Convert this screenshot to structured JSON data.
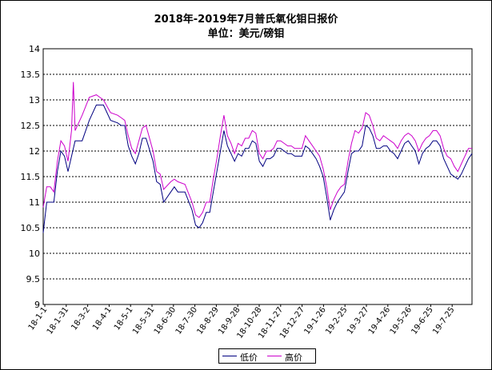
{
  "chart_data": {
    "type": "line",
    "title": "2018年-2019年7月普氏氧化钼日报价",
    "subtitle": "单位：美元/磅钼",
    "ylim": [
      9,
      14
    ],
    "yticks": [
      "14",
      "13.5",
      "13",
      "12.5",
      "12",
      "11.5",
      "11",
      "10.5",
      "10",
      "9.5",
      "9"
    ],
    "grid": true,
    "legend_position": "bottom-center",
    "categories": [
      "18-1-1",
      "18-1-31",
      "18-3-2",
      "18-4-1",
      "18-5-1",
      "18-5-31",
      "18-6-30",
      "18-7-30",
      "18-8-29",
      "18-9-28",
      "18-10-28",
      "18-11-27",
      "18-12-27",
      "19-1-26",
      "19-2-25",
      "19-3-27",
      "19-4-26",
      "19-5-26",
      "19-6-25",
      "19-7-25"
    ],
    "series": [
      {
        "name": "低价",
        "color": "#000080",
        "points": [
          [
            0,
            10.4
          ],
          [
            1,
            11.0
          ],
          [
            3,
            11.0
          ],
          [
            4,
            11.6
          ],
          [
            5,
            12.0
          ],
          [
            6,
            11.9
          ],
          [
            7,
            11.6
          ],
          [
            9,
            12.2
          ],
          [
            11,
            12.2
          ],
          [
            13,
            12.6
          ],
          [
            15,
            12.9
          ],
          [
            17,
            12.9
          ],
          [
            19,
            12.6
          ],
          [
            21,
            12.55
          ],
          [
            22,
            12.5
          ],
          [
            23,
            12.5
          ],
          [
            24,
            12.1
          ],
          [
            25,
            11.9
          ],
          [
            26,
            11.75
          ],
          [
            27,
            11.95
          ],
          [
            28,
            12.25
          ],
          [
            29,
            12.25
          ],
          [
            31,
            11.8
          ],
          [
            32,
            11.4
          ],
          [
            33,
            11.35
          ],
          [
            34,
            11.0
          ],
          [
            36,
            11.2
          ],
          [
            37,
            11.3
          ],
          [
            38,
            11.2
          ],
          [
            40,
            11.2
          ],
          [
            42,
            10.85
          ],
          [
            43,
            10.55
          ],
          [
            44,
            10.5
          ],
          [
            45,
            10.6
          ],
          [
            46,
            10.8
          ],
          [
            47,
            10.8
          ],
          [
            48,
            11.2
          ],
          [
            49,
            11.6
          ],
          [
            50,
            12.0
          ],
          [
            51,
            12.4
          ],
          [
            52,
            12.1
          ],
          [
            53,
            11.95
          ],
          [
            54,
            11.8
          ],
          [
            55,
            11.95
          ],
          [
            56,
            11.9
          ],
          [
            57,
            12.05
          ],
          [
            58,
            12.05
          ],
          [
            59,
            12.2
          ],
          [
            60,
            12.15
          ],
          [
            61,
            11.8
          ],
          [
            62,
            11.7
          ],
          [
            63,
            11.85
          ],
          [
            64,
            11.85
          ],
          [
            65,
            11.9
          ],
          [
            66,
            12.05
          ],
          [
            67,
            12.05
          ],
          [
            68,
            12.0
          ],
          [
            69,
            11.95
          ],
          [
            70,
            11.95
          ],
          [
            71,
            11.9
          ],
          [
            72,
            11.9
          ],
          [
            73,
            11.9
          ],
          [
            74,
            12.1
          ],
          [
            75,
            12.05
          ],
          [
            76,
            11.95
          ],
          [
            77,
            11.85
          ],
          [
            78,
            11.7
          ],
          [
            79,
            11.5
          ],
          [
            80,
            11.1
          ],
          [
            81,
            10.65
          ],
          [
            82,
            10.85
          ],
          [
            83,
            11.0
          ],
          [
            84,
            11.1
          ],
          [
            85,
            11.2
          ],
          [
            86,
            11.6
          ],
          [
            87,
            11.95
          ],
          [
            88,
            12.0
          ],
          [
            89,
            12.0
          ],
          [
            90,
            12.1
          ],
          [
            91,
            12.5
          ],
          [
            92,
            12.45
          ],
          [
            93,
            12.3
          ],
          [
            94,
            12.05
          ],
          [
            95,
            12.05
          ],
          [
            96,
            12.1
          ],
          [
            97,
            12.1
          ],
          [
            98,
            12.0
          ],
          [
            99,
            11.95
          ],
          [
            100,
            11.85
          ],
          [
            101,
            12.0
          ],
          [
            102,
            12.15
          ],
          [
            103,
            12.2
          ],
          [
            104,
            12.1
          ],
          [
            105,
            12.0
          ],
          [
            106,
            11.75
          ],
          [
            107,
            11.95
          ],
          [
            108,
            12.05
          ],
          [
            109,
            12.1
          ],
          [
            110,
            12.2
          ],
          [
            111,
            12.2
          ],
          [
            112,
            12.1
          ],
          [
            113,
            11.85
          ],
          [
            114,
            11.7
          ],
          [
            115,
            11.55
          ],
          [
            116,
            11.5
          ],
          [
            117,
            11.45
          ],
          [
            118,
            11.55
          ],
          [
            119,
            11.7
          ],
          [
            120,
            11.85
          ],
          [
            121,
            11.95
          ]
        ]
      },
      {
        "name": "高价",
        "color": "#cc00cc",
        "points": [
          [
            0,
            10.9
          ],
          [
            1,
            11.3
          ],
          [
            2,
            11.3
          ],
          [
            3,
            11.2
          ],
          [
            4,
            11.8
          ],
          [
            5,
            12.2
          ],
          [
            6,
            12.1
          ],
          [
            7,
            11.8
          ],
          [
            8,
            12.4
          ],
          [
            8.5,
            13.35
          ],
          [
            9,
            12.4
          ],
          [
            11,
            12.7
          ],
          [
            13,
            13.05
          ],
          [
            15,
            13.1
          ],
          [
            17,
            13.0
          ],
          [
            19,
            12.75
          ],
          [
            21,
            12.7
          ],
          [
            22,
            12.65
          ],
          [
            23,
            12.6
          ],
          [
            24,
            12.3
          ],
          [
            25,
            12.05
          ],
          [
            26,
            11.95
          ],
          [
            27,
            12.2
          ],
          [
            28,
            12.45
          ],
          [
            29,
            12.5
          ],
          [
            31,
            12.0
          ],
          [
            32,
            11.6
          ],
          [
            33,
            11.55
          ],
          [
            34,
            11.25
          ],
          [
            36,
            11.4
          ],
          [
            37,
            11.45
          ],
          [
            38,
            11.4
          ],
          [
            40,
            11.35
          ],
          [
            42,
            11.0
          ],
          [
            43,
            10.75
          ],
          [
            44,
            10.7
          ],
          [
            45,
            10.8
          ],
          [
            46,
            11.0
          ],
          [
            47,
            11.0
          ],
          [
            48,
            11.45
          ],
          [
            49,
            11.85
          ],
          [
            50,
            12.3
          ],
          [
            51,
            12.7
          ],
          [
            52,
            12.3
          ],
          [
            53,
            12.15
          ],
          [
            54,
            11.95
          ],
          [
            55,
            12.15
          ],
          [
            56,
            12.1
          ],
          [
            57,
            12.25
          ],
          [
            58,
            12.25
          ],
          [
            59,
            12.4
          ],
          [
            60,
            12.35
          ],
          [
            61,
            11.95
          ],
          [
            62,
            11.85
          ],
          [
            63,
            12.0
          ],
          [
            64,
            12.0
          ],
          [
            65,
            12.05
          ],
          [
            66,
            12.2
          ],
          [
            67,
            12.2
          ],
          [
            68,
            12.15
          ],
          [
            69,
            12.1
          ],
          [
            70,
            12.1
          ],
          [
            71,
            12.05
          ],
          [
            72,
            12.05
          ],
          [
            73,
            12.05
          ],
          [
            74,
            12.3
          ],
          [
            75,
            12.2
          ],
          [
            76,
            12.1
          ],
          [
            77,
            12.0
          ],
          [
            78,
            11.9
          ],
          [
            79,
            11.65
          ],
          [
            80,
            11.3
          ],
          [
            81,
            10.85
          ],
          [
            82,
            11.05
          ],
          [
            83,
            11.2
          ],
          [
            84,
            11.3
          ],
          [
            85,
            11.35
          ],
          [
            86,
            11.8
          ],
          [
            87,
            12.15
          ],
          [
            88,
            12.4
          ],
          [
            89,
            12.35
          ],
          [
            90,
            12.45
          ],
          [
            91,
            12.75
          ],
          [
            92,
            12.7
          ],
          [
            93,
            12.5
          ],
          [
            94,
            12.25
          ],
          [
            95,
            12.2
          ],
          [
            96,
            12.3
          ],
          [
            97,
            12.25
          ],
          [
            98,
            12.2
          ],
          [
            99,
            12.15
          ],
          [
            100,
            12.05
          ],
          [
            101,
            12.2
          ],
          [
            102,
            12.3
          ],
          [
            103,
            12.35
          ],
          [
            104,
            12.3
          ],
          [
            105,
            12.2
          ],
          [
            106,
            12.0
          ],
          [
            107,
            12.15
          ],
          [
            108,
            12.25
          ],
          [
            109,
            12.3
          ],
          [
            110,
            12.4
          ],
          [
            111,
            12.4
          ],
          [
            112,
            12.3
          ],
          [
            113,
            12.05
          ],
          [
            114,
            11.9
          ],
          [
            115,
            11.85
          ],
          [
            116,
            11.7
          ],
          [
            117,
            11.6
          ],
          [
            118,
            11.75
          ],
          [
            119,
            11.9
          ],
          [
            120,
            12.05
          ],
          [
            121,
            12.05
          ]
        ]
      }
    ]
  }
}
